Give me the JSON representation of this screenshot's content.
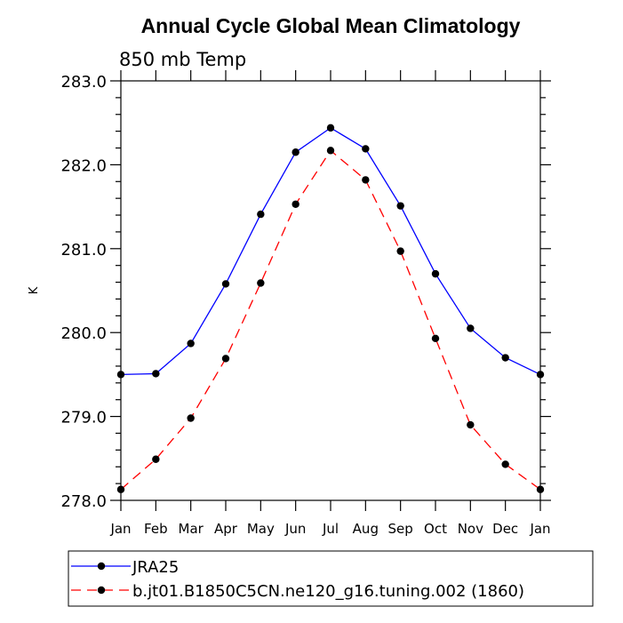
{
  "chart_data": {
    "type": "line",
    "title": "Annual Cycle Global Mean Climatology",
    "subtitle": "850 mb Temp",
    "xlabel": "",
    "ylabel": "K",
    "ylim": [
      278.0,
      283.0
    ],
    "yticks": [
      "278.0",
      "279.0",
      "280.0",
      "281.0",
      "282.0",
      "283.0"
    ],
    "categories": [
      "Jan",
      "Feb",
      "Mar",
      "Apr",
      "May",
      "Jun",
      "Jul",
      "Aug",
      "Sep",
      "Oct",
      "Nov",
      "Dec",
      "Jan"
    ],
    "grid": false,
    "legend_position": "bottom",
    "series": [
      {
        "name": "JRA25",
        "color": "#0000ff",
        "dash": "solid",
        "marker": "filled-circle",
        "values": [
          279.5,
          279.51,
          279.87,
          280.58,
          281.41,
          282.15,
          282.44,
          282.19,
          281.51,
          280.7,
          280.05,
          279.7,
          279.5
        ]
      },
      {
        "name": "b.jt01.B1850C5CN.ne120_g16.tuning.002 (1860)",
        "color": "#ff0000",
        "dash": "dashed",
        "marker": "filled-circle",
        "values": [
          278.13,
          278.49,
          278.98,
          279.69,
          280.59,
          281.53,
          282.17,
          281.82,
          280.97,
          279.93,
          278.9,
          278.43,
          278.13
        ]
      }
    ]
  }
}
